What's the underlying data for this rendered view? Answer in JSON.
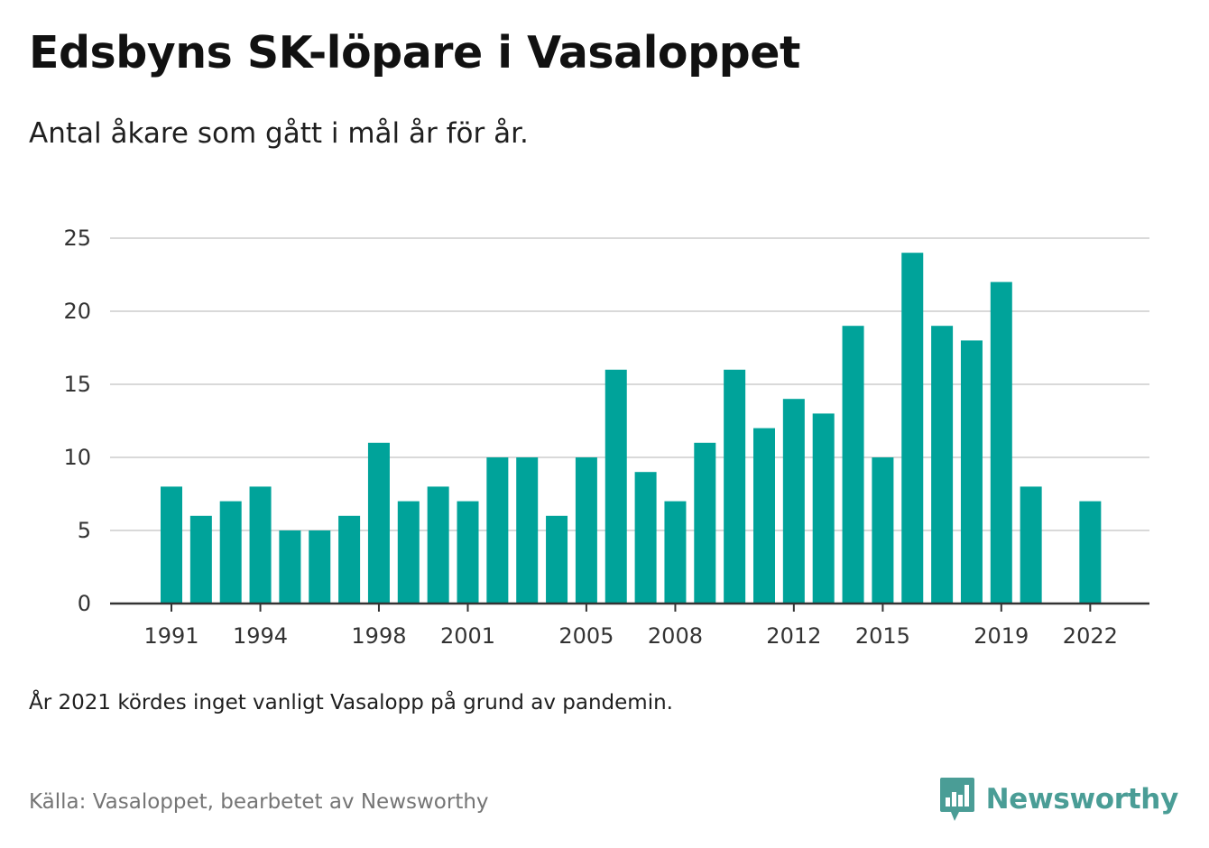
{
  "header": {
    "title": "Edsbyns SK-löpare i Vasaloppet",
    "subtitle": "Antal åkare som gått i mål år för år."
  },
  "footer": {
    "note": "År 2021 kördes inget vanligt Vasalopp på grund av pandemin.",
    "source": "Källa: Vasaloppet, bearbetet av Newsworthy",
    "brand_name": "Newsworthy",
    "brand_icon": "newsworthy-logo-icon"
  },
  "colors": {
    "bar": "#00a39a",
    "grid": "#d9d9d9",
    "axis": "#333333",
    "brand": "#4a9d96"
  },
  "chart_data": {
    "type": "bar",
    "categories": [
      1991,
      1992,
      1993,
      1994,
      1995,
      1996,
      1997,
      1998,
      1999,
      2000,
      2001,
      2002,
      2003,
      2004,
      2005,
      2006,
      2007,
      2008,
      2009,
      2010,
      2011,
      2012,
      2013,
      2014,
      2015,
      2016,
      2017,
      2018,
      2019,
      2020,
      2021,
      2022
    ],
    "values": [
      8,
      6,
      7,
      8,
      5,
      5,
      6,
      11,
      7,
      8,
      7,
      10,
      10,
      6,
      10,
      16,
      9,
      7,
      11,
      16,
      12,
      14,
      13,
      19,
      10,
      24,
      19,
      18,
      22,
      8,
      null,
      7
    ],
    "x_tick_labels": [
      "1991",
      "1994",
      "1998",
      "2001",
      "2005",
      "2008",
      "2012",
      "2015",
      "2019",
      "2022"
    ],
    "y_ticks": [
      "0",
      "5",
      "10",
      "15",
      "20",
      "25"
    ],
    "ylim": [
      0,
      25
    ],
    "grid": true
  }
}
